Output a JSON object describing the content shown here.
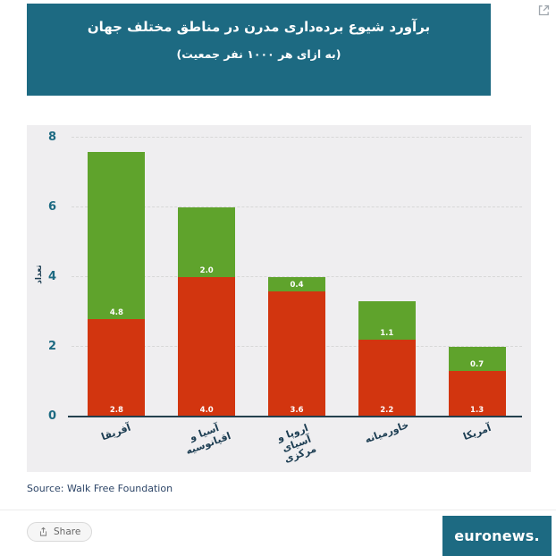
{
  "chart_data": {
    "type": "bar",
    "stacked": true,
    "title": "برآورد شیوع برده‌داری مدرن در مناطق مختلف جهان",
    "subtitle": "(به ازای هر ۱۰۰۰ نفر جمعیت)",
    "ylabel": "تعداد",
    "ylim": [
      0,
      8
    ],
    "yticks": [
      0,
      2,
      4,
      6,
      8
    ],
    "grid": true,
    "legend": "none",
    "categories": [
      "آفریقا",
      "آسیا و اقیانوسیه",
      "اروپا و آسیای مرکزی",
      "خاورمیانه",
      "آمریکا"
    ],
    "series": [
      {
        "name": "red-bottom",
        "color": "#d2350f",
        "values": [
          2.8,
          4.0,
          3.6,
          2.2,
          1.3
        ]
      },
      {
        "name": "green-top",
        "color": "#5fa32c",
        "values": [
          4.8,
          2.0,
          0.4,
          1.1,
          0.7
        ]
      }
    ]
  },
  "footer": {
    "source": "Source: Walk Free Foundation",
    "share_label": "Share",
    "brand": "euronews."
  },
  "colors": {
    "teal": "#1d6a82",
    "plot_background": "#efeef0",
    "bar_red": "#d2350f",
    "bar_green": "#5fa32c",
    "axis_tick_text": "#1d6a82",
    "category_text": "#1c3d52",
    "value_label_text": "#ffffff"
  }
}
